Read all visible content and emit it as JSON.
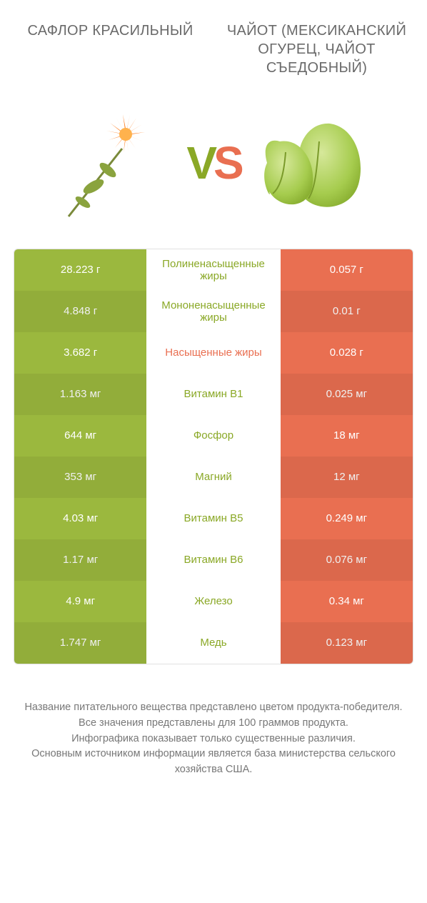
{
  "colors": {
    "left": "#9bb83e",
    "right": "#e96f51",
    "mid_left_text": "#8aa826",
    "mid_right_text": "#e96f51",
    "bg": "#ffffff"
  },
  "header": {
    "left_title": "САФЛОР КРАСИЛЬНЫЙ",
    "right_title": "ЧАЙОТ (МЕКСИКАНСКИЙ ОГУРЕЦ, ЧАЙОТ СЪЕДОБНЫЙ)"
  },
  "vs": {
    "v": "V",
    "s": "S"
  },
  "table": {
    "rows": [
      {
        "left": "28.223 г",
        "mid": "Полиненасыщенные жиры",
        "right": "0.057 г",
        "winner": "left"
      },
      {
        "left": "4.848 г",
        "mid": "Мононенасыщенные жиры",
        "right": "0.01 г",
        "winner": "left"
      },
      {
        "left": "3.682 г",
        "mid": "Насыщенные жиры",
        "right": "0.028 г",
        "winner": "right"
      },
      {
        "left": "1.163 мг",
        "mid": "Витамин B1",
        "right": "0.025 мг",
        "winner": "left"
      },
      {
        "left": "644 мг",
        "mid": "Фосфор",
        "right": "18 мг",
        "winner": "left"
      },
      {
        "left": "353 мг",
        "mid": "Магний",
        "right": "12 мг",
        "winner": "left"
      },
      {
        "left": "4.03 мг",
        "mid": "Витамин B5",
        "right": "0.249 мг",
        "winner": "left"
      },
      {
        "left": "1.17 мг",
        "mid": "Витамин B6",
        "right": "0.076 мг",
        "winner": "left"
      },
      {
        "left": "4.9 мг",
        "mid": "Железо",
        "right": "0.34 мг",
        "winner": "left"
      },
      {
        "left": "1.747 мг",
        "mid": "Медь",
        "right": "0.123 мг",
        "winner": "left"
      }
    ]
  },
  "footnotes": [
    "Название питательного вещества представлено цветом продукта-победителя.",
    "Все значения представлены для 100 граммов продукта.",
    "Инфографика показывает только существенные различия.",
    "Основным источником информации является база министерства сельского хозяйства США."
  ],
  "icons": {
    "left_name": "safflower-icon",
    "right_name": "chayote-icon"
  }
}
